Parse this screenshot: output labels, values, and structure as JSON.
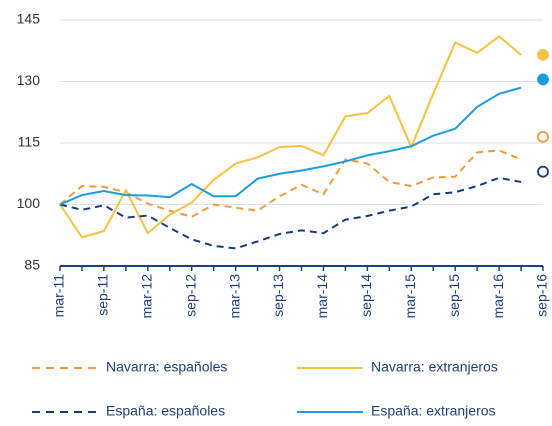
{
  "chart_data": {
    "type": "line",
    "categories": [
      "mar-11",
      null,
      "sep-11",
      null,
      "mar-12",
      null,
      "sep-12",
      null,
      "mar-13",
      null,
      "sep-13",
      null,
      "mar-14",
      null,
      "sep-14",
      null,
      "mar-15",
      null,
      "sep-15",
      null,
      "mar-16",
      null,
      "sep-16"
    ],
    "ylim": [
      85,
      145
    ],
    "yticks": [
      85,
      100,
      115,
      130,
      145
    ],
    "grid": true,
    "series": [
      {
        "name": "Navarra: españoles",
        "color": "#f39a3c",
        "dashed": true,
        "values": [
          100,
          104.5,
          104.3,
          103,
          100.2,
          98.5,
          97,
          100,
          99.2,
          98.5,
          102,
          104.8,
          102.5,
          111,
          110,
          105.5,
          104.5,
          106.6,
          106.8,
          112.7,
          113.2,
          111,
          116.5
        ]
      },
      {
        "name": "Navarra: extranjeros",
        "color": "#f5c242",
        "dashed": false,
        "values": [
          100,
          92,
          93.5,
          103.5,
          93,
          97.5,
          100.5,
          106,
          110,
          111.5,
          114,
          114.3,
          112,
          121.5,
          122.3,
          126.5,
          114,
          127,
          139.5,
          137,
          141,
          136.5,
          136.5
        ]
      },
      {
        "name": "España: españoles",
        "color": "#1a3a7c",
        "dashed": true,
        "values": [
          100,
          98.7,
          99.8,
          96.8,
          97.3,
          94.3,
          91.5,
          89.9,
          89.3,
          91,
          92.8,
          93.7,
          93,
          96.3,
          97.2,
          98.5,
          99.5,
          102.5,
          103,
          104.5,
          106.5,
          105.5,
          108
        ]
      },
      {
        "name": "España: extranjeros",
        "color": "#1b9be0",
        "dashed": false,
        "values": [
          100,
          102.3,
          103.3,
          102.3,
          102.2,
          101.8,
          105,
          102,
          102,
          106.3,
          107.5,
          108.3,
          109.3,
          110.5,
          112,
          113,
          114.2,
          116.8,
          118.5,
          123.8,
          127,
          128.5,
          130.5
        ]
      }
    ]
  }
}
